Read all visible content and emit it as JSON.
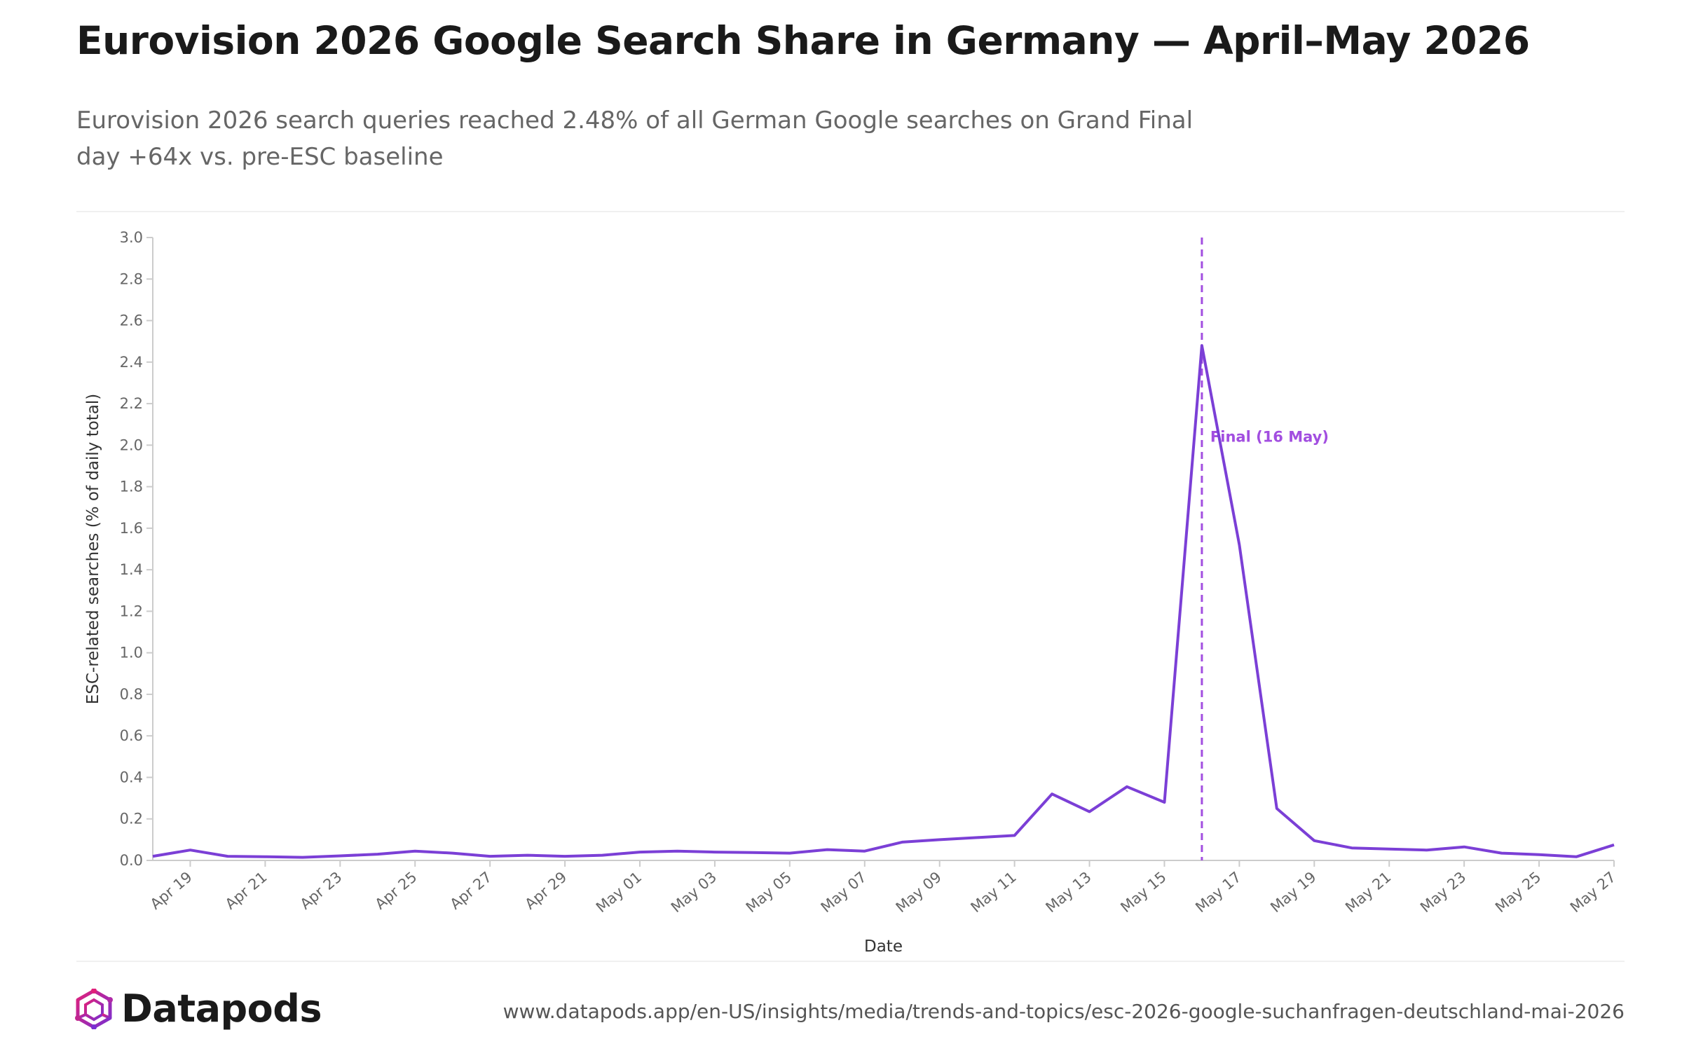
{
  "header": {
    "title": "Eurovision 2026 Google Search Share in Germany — April–May 2026",
    "subtitle": "Eurovision 2026 search queries reached 2.48% of all German Google searches on Grand Final day +64x vs. pre-ESC baseline"
  },
  "footer": {
    "brand": "Datapods",
    "source_url": "www.datapods.app/en-US/insights/media/trends-and-topics/esc-2026-google-suchanfragen-deutschland-mai-2026"
  },
  "colors": {
    "line": "#7b3fd6",
    "annotation": "#a24ee0",
    "axis": "#cccccc",
    "tick_text": "#666666"
  },
  "chart_data": {
    "type": "line",
    "xlabel": "Date",
    "ylabel": "ESC-related searches (% of daily total)",
    "ylim": [
      0,
      3.0
    ],
    "y_ticks": [
      "0.0",
      "0.2",
      "0.4",
      "0.6",
      "0.8",
      "1.0",
      "1.2",
      "1.4",
      "1.6",
      "1.8",
      "2.0",
      "2.2",
      "2.4",
      "2.6",
      "2.8",
      "3.0"
    ],
    "x_tick_labels": [
      "Apr 19",
      "Apr 21",
      "Apr 23",
      "Apr 25",
      "Apr 27",
      "Apr 29",
      "May 01",
      "May 03",
      "May 05",
      "May 07",
      "May 09",
      "May 11",
      "May 13",
      "May 15",
      "May 17",
      "May 19",
      "May 21",
      "May 23",
      "May 25",
      "May 27"
    ],
    "x": [
      "2026-04-18",
      "2026-04-19",
      "2026-04-20",
      "2026-04-21",
      "2026-04-22",
      "2026-04-23",
      "2026-04-24",
      "2026-04-25",
      "2026-04-26",
      "2026-04-27",
      "2026-04-28",
      "2026-04-29",
      "2026-04-30",
      "2026-05-01",
      "2026-05-02",
      "2026-05-03",
      "2026-05-04",
      "2026-05-05",
      "2026-05-06",
      "2026-05-07",
      "2026-05-08",
      "2026-05-09",
      "2026-05-10",
      "2026-05-11",
      "2026-05-12",
      "2026-05-13",
      "2026-05-14",
      "2026-05-15",
      "2026-05-16",
      "2026-05-17",
      "2026-05-18",
      "2026-05-19",
      "2026-05-20",
      "2026-05-21",
      "2026-05-22",
      "2026-05-23",
      "2026-05-24",
      "2026-05-25",
      "2026-05-26",
      "2026-05-27"
    ],
    "series": [
      {
        "values": [
          0.02,
          0.05,
          0.02,
          0.018,
          0.015,
          0.022,
          0.03,
          0.045,
          0.035,
          0.02,
          0.025,
          0.02,
          0.025,
          0.04,
          0.045,
          0.04,
          0.038,
          0.035,
          0.052,
          0.045,
          0.088,
          0.1,
          0.11,
          0.12,
          0.32,
          0.235,
          0.355,
          0.28,
          2.48,
          1.52,
          0.25,
          0.095,
          0.06,
          0.055,
          0.05,
          0.065,
          0.035,
          0.028,
          0.018,
          0.075
        ]
      }
    ],
    "annotations": [
      {
        "x": "2026-05-16",
        "label": "Final (16 May)",
        "style": "dashed-vertical-line"
      }
    ],
    "grid": false,
    "legend": "none"
  }
}
